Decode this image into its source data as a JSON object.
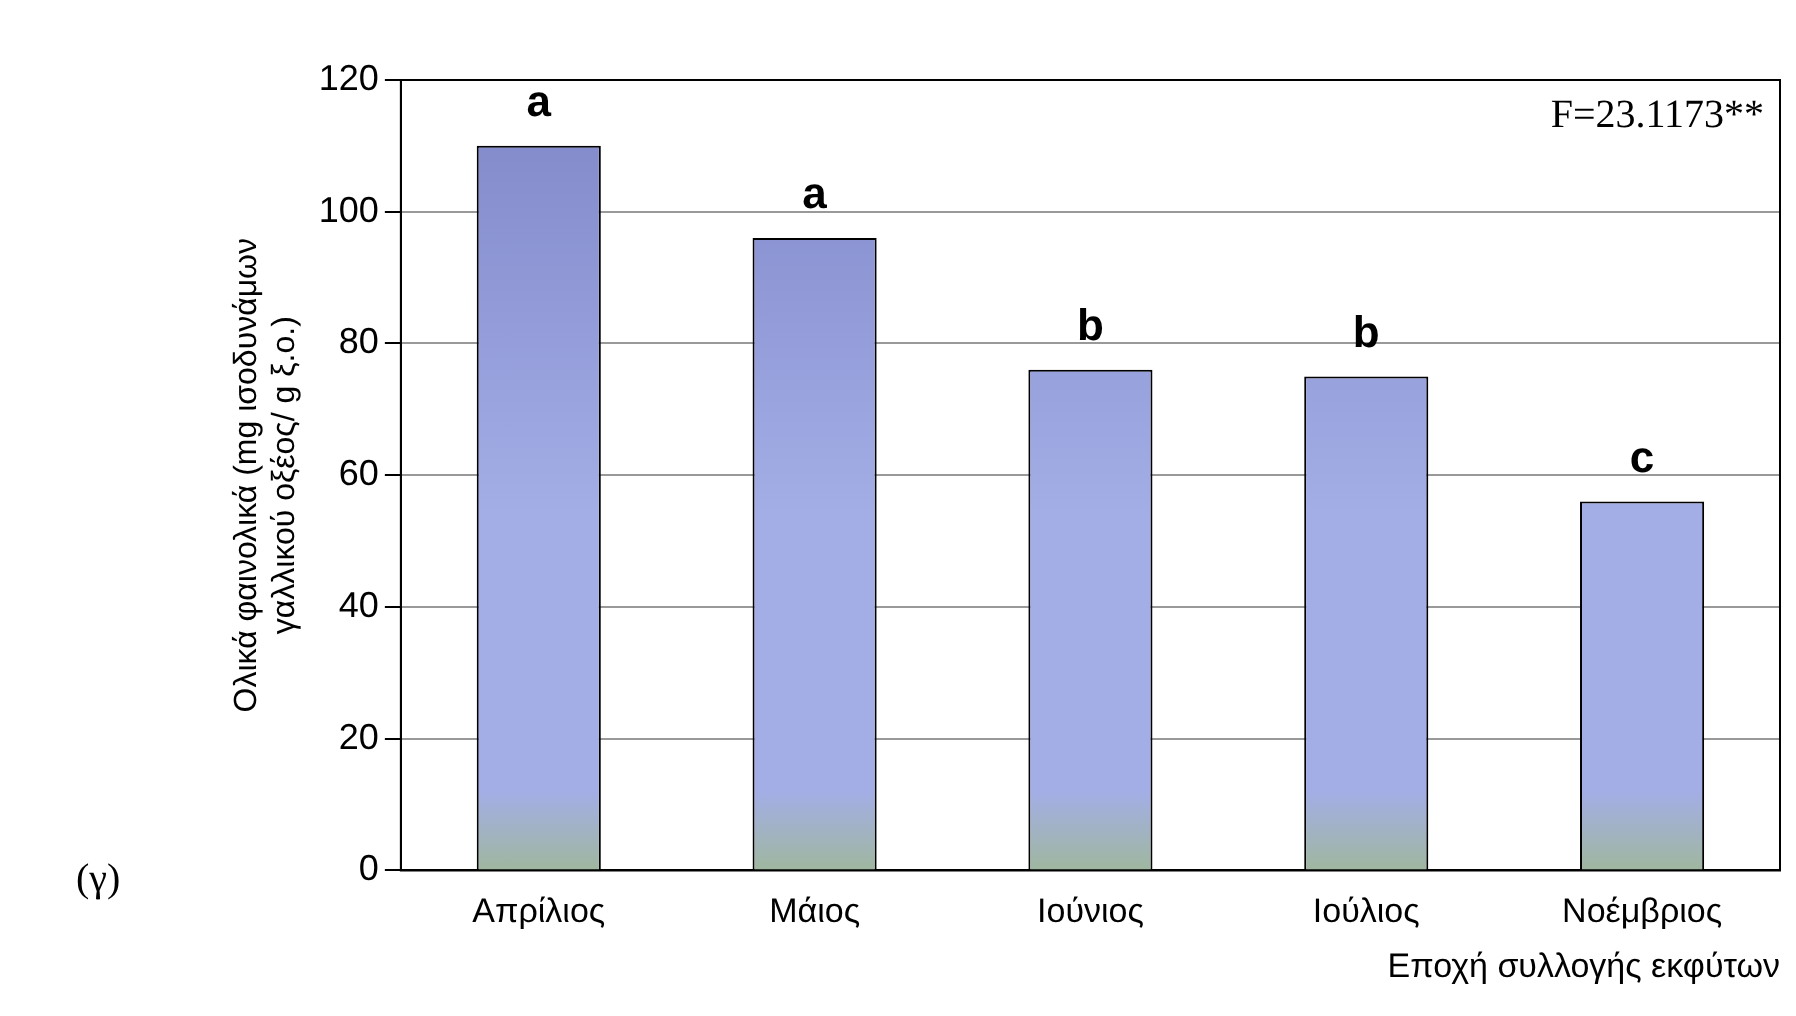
{
  "chart_data": {
    "type": "bar",
    "ylabel": "Ολικά φαινολικά (mg ισοδυνάμων\nγαλλικού οξέος/ g ξ.ο.)",
    "xlabel": "Εποχή συλλογής εκφύτων",
    "categories": [
      "Απρίλιος",
      "Μάιος",
      "Ιούνιος",
      "Ιούλιος",
      "Νοέμβριος"
    ],
    "values": [
      110,
      96,
      76,
      75,
      56
    ],
    "color": "#a3aee6",
    "ylim": [
      0,
      120
    ],
    "yticks": [
      0,
      20,
      40,
      60,
      80,
      100,
      120
    ],
    "grid": "y",
    "annotations": [
      "F=23.1173**",
      "(γ)",
      {
        "text": "a",
        "x": "Απρίλιος",
        "y": 110
      },
      {
        "text": "a",
        "x": "Μάιος",
        "y": 96
      },
      {
        "text": "b",
        "x": "Ιούνιος",
        "y": 76
      },
      {
        "text": "b",
        "x": "Ιούλιος",
        "y": 75
      },
      {
        "text": "c",
        "x": "Νοέμβριος",
        "y": 56
      }
    ]
  }
}
